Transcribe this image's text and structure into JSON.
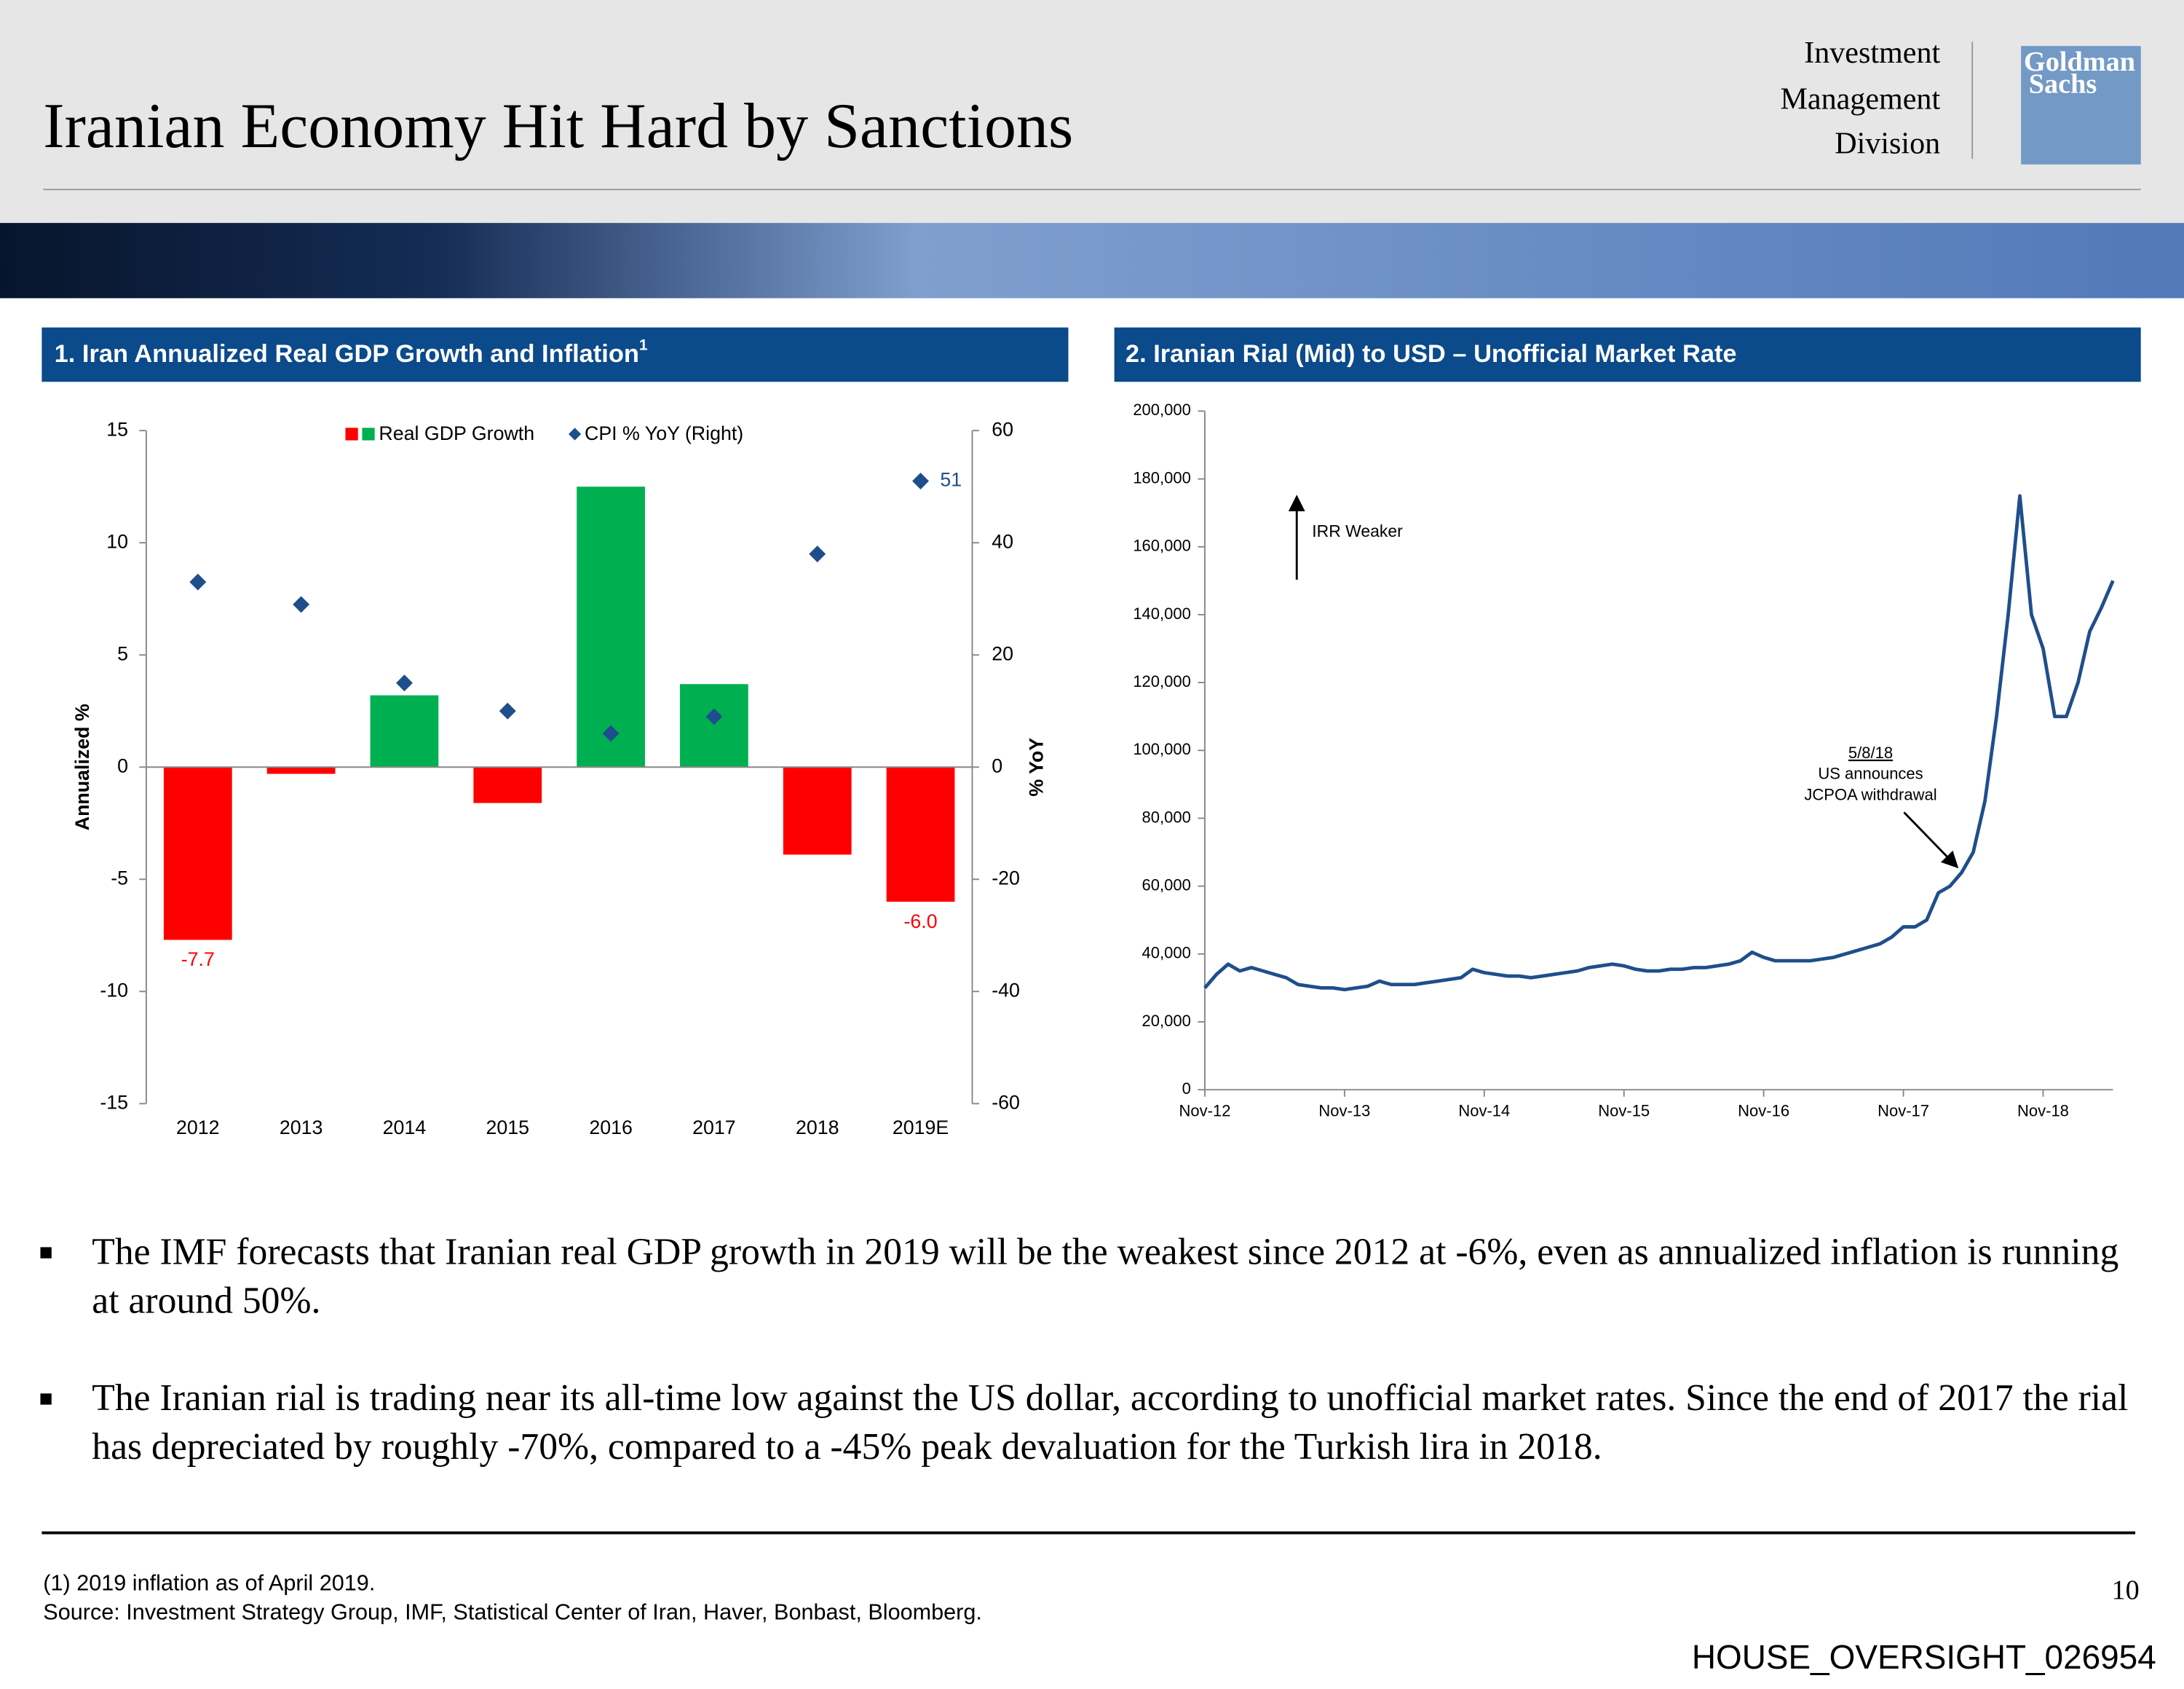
{
  "header": {
    "title": "Iranian Economy Hit Hard by Sanctions",
    "division": [
      "Investment",
      "Management",
      "Division"
    ],
    "logo": [
      "Goldman",
      "Sachs"
    ]
  },
  "chart_data": [
    {
      "type": "bar",
      "title": "1. Iran Annualized Real GDP Growth and Inflation",
      "title_note": "1",
      "categories": [
        "2012",
        "2013",
        "2014",
        "2015",
        "2016",
        "2017",
        "2018",
        "2019E"
      ],
      "series": [
        {
          "name": "Real GDP Growth",
          "type": "bar",
          "color": "#00b050",
          "negative_color": "#ff0000",
          "values": [
            -7.7,
            -0.3,
            3.2,
            -1.6,
            12.5,
            3.7,
            -3.9,
            -6.0
          ],
          "value_labels": [
            "-7.7",
            null,
            null,
            null,
            null,
            null,
            null,
            "-6.0"
          ]
        },
        {
          "name": "CPI % YoY (Right)",
          "type": "scatter",
          "axis": "y2",
          "color": "#1f4e8c",
          "values": [
            33,
            29,
            15,
            10,
            6,
            9,
            38,
            51
          ],
          "value_labels": [
            null,
            null,
            null,
            null,
            null,
            null,
            null,
            "51"
          ]
        }
      ],
      "ylabel": "Annualized %",
      "y2label": "% YoY",
      "ylim": [
        -15,
        15
      ],
      "yticks": [
        -15,
        -10,
        -5,
        0,
        5,
        10,
        15
      ],
      "y2lim": [
        -60,
        60
      ],
      "y2ticks": [
        -60,
        -40,
        -20,
        0,
        20,
        40,
        60
      ]
    },
    {
      "type": "line",
      "title": "2. Iranian Rial (Mid) to USD – Unofficial Market Rate",
      "color": "#1f4e8c",
      "x": [
        "2012-11",
        "2012-12",
        "2013-01",
        "2013-02",
        "2013-03",
        "2013-04",
        "2013-05",
        "2013-06",
        "2013-07",
        "2013-08",
        "2013-09",
        "2013-10",
        "2013-11",
        "2013-12",
        "2014-01",
        "2014-02",
        "2014-03",
        "2014-04",
        "2014-05",
        "2014-06",
        "2014-07",
        "2014-08",
        "2014-09",
        "2014-10",
        "2014-11",
        "2014-12",
        "2015-01",
        "2015-02",
        "2015-03",
        "2015-04",
        "2015-05",
        "2015-06",
        "2015-07",
        "2015-08",
        "2015-09",
        "2015-10",
        "2015-11",
        "2015-12",
        "2016-01",
        "2016-02",
        "2016-03",
        "2016-04",
        "2016-05",
        "2016-06",
        "2016-07",
        "2016-08",
        "2016-09",
        "2016-10",
        "2016-11",
        "2016-12",
        "2017-01",
        "2017-02",
        "2017-03",
        "2017-04",
        "2017-05",
        "2017-06",
        "2017-07",
        "2017-08",
        "2017-09",
        "2017-10",
        "2017-11",
        "2017-12",
        "2018-01",
        "2018-02",
        "2018-03",
        "2018-04",
        "2018-05",
        "2018-06",
        "2018-07",
        "2018-08",
        "2018-09",
        "2018-10",
        "2018-11",
        "2018-12",
        "2019-01",
        "2019-02",
        "2019-03",
        "2019-04",
        "2019-05"
      ],
      "values": [
        30000,
        34000,
        37000,
        35000,
        36000,
        35000,
        34000,
        33000,
        31000,
        30500,
        30000,
        30000,
        29500,
        30000,
        30500,
        32000,
        31000,
        31000,
        31000,
        31500,
        32000,
        32500,
        33000,
        35500,
        34500,
        34000,
        33500,
        33500,
        33000,
        33500,
        34000,
        34500,
        35000,
        36000,
        36500,
        37000,
        36500,
        35500,
        35000,
        35000,
        35500,
        35500,
        36000,
        36000,
        36500,
        37000,
        38000,
        40500,
        39000,
        38000,
        38000,
        38000,
        38000,
        38500,
        39000,
        40000,
        41000,
        42000,
        43000,
        45000,
        48000,
        48000,
        50000,
        58000,
        60000,
        64000,
        70000,
        85000,
        110000,
        140000,
        175000,
        140000,
        130000,
        110000,
        110000,
        120000,
        135000,
        142000,
        150000
      ],
      "xlim": [
        "2012-11",
        "2019-05"
      ],
      "xticks": [
        {
          "value": "2012-11",
          "label": "Nov-12"
        },
        {
          "value": "2013-11",
          "label": "Nov-13"
        },
        {
          "value": "2014-11",
          "label": "Nov-14"
        },
        {
          "value": "2015-11",
          "label": "Nov-15"
        },
        {
          "value": "2016-11",
          "label": "Nov-16"
        },
        {
          "value": "2017-11",
          "label": "Nov-17"
        },
        {
          "value": "2018-11",
          "label": "Nov-18"
        }
      ],
      "ylim": [
        0,
        200000
      ],
      "yticks": [
        0,
        {
          "value": 20000,
          "label": "20,000"
        },
        {
          "value": 40000,
          "label": "40,000"
        },
        {
          "value": 60000,
          "label": "60,000"
        },
        {
          "value": 80000,
          "label": "80,000"
        },
        {
          "value": 100000,
          "label": "100,000"
        },
        {
          "value": 120000,
          "label": "120,000"
        },
        {
          "value": 140000,
          "label": "140,000"
        },
        {
          "value": 160000,
          "label": "160,000"
        },
        {
          "value": 180000,
          "label": "180,000"
        },
        {
          "value": 200000,
          "label": "200,000"
        }
      ],
      "annotations": [
        {
          "text": "IRR Weaker"
        },
        {
          "lines": [
            "5/8/18",
            "US announces",
            "JCPOA withdrawal"
          ]
        }
      ]
    }
  ],
  "bullets": [
    "The IMF forecasts that Iranian real GDP growth in 2019 will be the weakest since 2012 at -6%, even as annualized inflation is running at around 50%.",
    "The Iranian rial is trading near its all-time low against the US dollar, according to unofficial market rates. Since the end of 2017 the rial has depreciated by roughly -70%, compared to a -45% peak devaluation for the Turkish lira in 2018."
  ],
  "footnotes": [
    "(1) 2019 inflation as of April 2019.",
    "Source: Investment Strategy Group, IMF, Statistical Center of Iran, Haver, Bonbast, Bloomberg."
  ],
  "page_number": "10",
  "doc_id": "HOUSE_OVERSIGHT_026954"
}
